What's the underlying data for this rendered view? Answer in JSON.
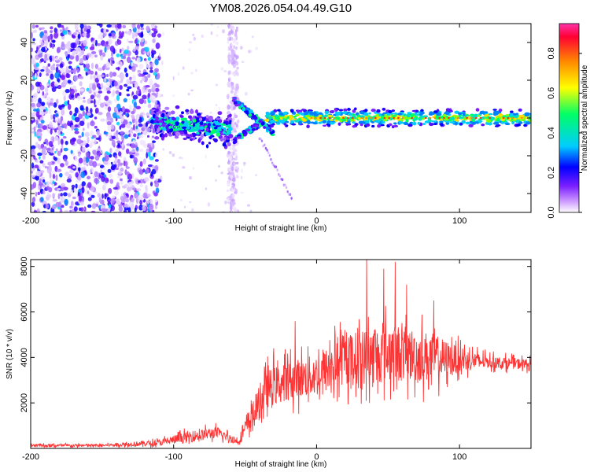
{
  "title": "YM08.2026.054.04.49.G10",
  "chart_data": [
    {
      "type": "heatmap",
      "name": "spectrogram",
      "xlabel": "Height of straight line (km)",
      "ylabel": "Frequency (Hz)",
      "xlim": [
        -200,
        150
      ],
      "ylim": [
        -50,
        50
      ],
      "xticks": [
        -200,
        -100,
        0,
        100
      ],
      "yticks": [
        -40,
        -20,
        0,
        20,
        40
      ],
      "colorbar": {
        "label": "Normalized spectral amplitude",
        "range": [
          0.0,
          0.95
        ],
        "ticks": [
          0.0,
          0.2,
          0.4,
          0.6,
          0.8
        ],
        "colors": [
          "#ffffff",
          "#cc99ff",
          "#7a1fff",
          "#0000ff",
          "#00ccff",
          "#00ff66",
          "#ffff00",
          "#ff8800",
          "#ff0033",
          "#ff33aa"
        ]
      },
      "features": {
        "noise_region_x": [
          -200,
          -110
        ],
        "noise_columns_x": [
          -62,
          -55
        ],
        "band_center_hz": 0,
        "band_start_x": -115
      }
    },
    {
      "type": "line",
      "name": "snr",
      "xlabel": "Height of straight line (km)",
      "ylabel": "SNR (10 * v/v)",
      "xlim": [
        -200,
        150
      ],
      "ylim": [
        0,
        8300
      ],
      "xticks": [
        -200,
        -100,
        0,
        100
      ],
      "yticks": [
        2000,
        4000,
        6000,
        8000
      ],
      "color": "#ff3333",
      "envelope": {
        "x": [
          -200,
          -150,
          -110,
          -90,
          -70,
          -55,
          -45,
          -35,
          -20,
          0,
          20,
          40,
          55,
          80,
          100,
          120,
          150
        ],
        "mean": [
          120,
          130,
          250,
          500,
          700,
          300,
          1400,
          2600,
          3000,
          3200,
          3900,
          4100,
          4200,
          4000,
          3900,
          3800,
          3700
        ],
        "spread": [
          120,
          100,
          250,
          450,
          450,
          250,
          1200,
          1500,
          1500,
          1700,
          2000,
          2300,
          2300,
          2000,
          1000,
          500,
          400
        ]
      },
      "peaks": [
        {
          "x": -30,
          "y": 4400
        },
        {
          "x": -15,
          "y": 5600
        },
        {
          "x": 13,
          "y": 5000
        },
        {
          "x": 35,
          "y": 8300
        },
        {
          "x": 47,
          "y": 7900
        },
        {
          "x": 55,
          "y": 8200
        },
        {
          "x": 63,
          "y": 7200
        },
        {
          "x": 82,
          "y": 6500
        }
      ]
    }
  ]
}
